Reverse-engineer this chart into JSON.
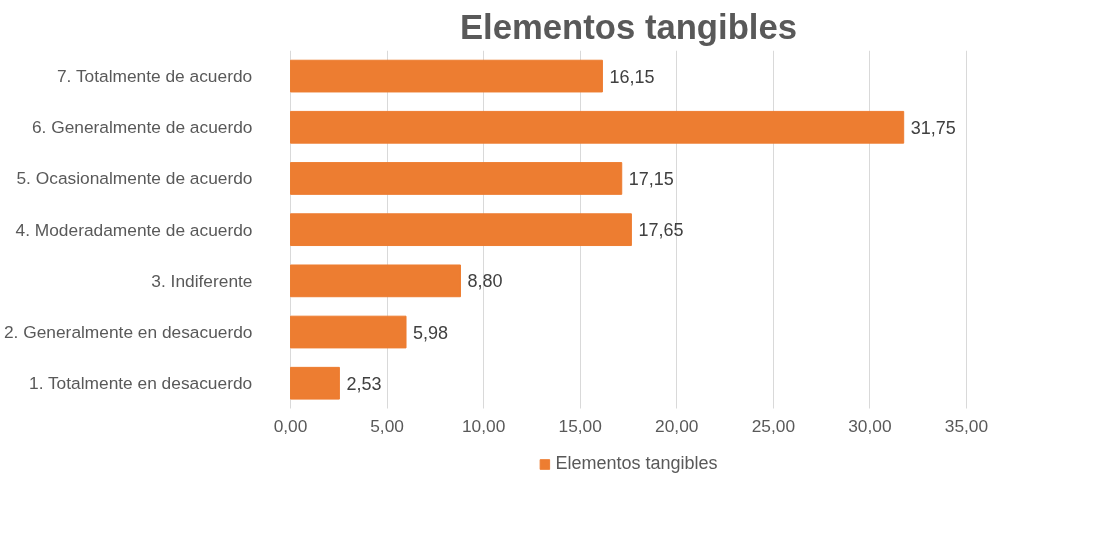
{
  "chart_data": {
    "type": "bar",
    "orientation": "horizontal",
    "title": "Elementos tangibles",
    "categories": [
      "7. Totalmente de acuerdo",
      "6. Generalmente de acuerdo",
      "5. Ocasionalmente de acuerdo",
      "4. Moderadamente de acuerdo",
      "3. Indiferente",
      "2. Generalmente en desacuerdo",
      "1. Totalmente en desacuerdo"
    ],
    "series": [
      {
        "name": "Elementos tangibles",
        "color": "#ed7d31",
        "values": [
          16.15,
          31.75,
          17.15,
          17.65,
          8.8,
          5.98,
          2.53
        ],
        "value_labels": [
          "16,15",
          "31,75",
          "17,15",
          "17,65",
          "8,80",
          "5,98",
          "2,53"
        ]
      }
    ],
    "xlim": [
      0,
      35
    ],
    "xticks": [
      {
        "value": 0,
        "label": "0,00"
      },
      {
        "value": 5,
        "label": "5,00"
      },
      {
        "value": 10,
        "label": "10,00"
      },
      {
        "value": 15,
        "label": "15,00"
      },
      {
        "value": 20,
        "label": "20,00"
      },
      {
        "value": 25,
        "label": "25,00"
      },
      {
        "value": 30,
        "label": "30,00"
      },
      {
        "value": 35,
        "label": "35,00"
      }
    ],
    "grid": "x",
    "legend": "bottom"
  }
}
